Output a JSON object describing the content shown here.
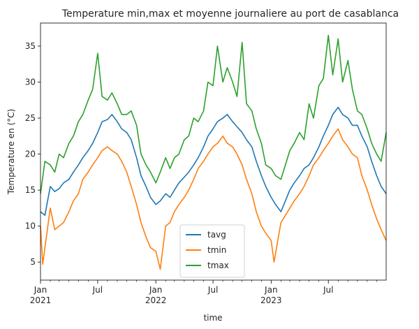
{
  "chart_data": {
    "type": "line",
    "title": "Temperature min,max et moyenne journaliere au port de casablanca",
    "xlabel": "time",
    "ylabel": "Temperature en (°C)",
    "xlim": [
      "2021-01-01",
      "2023-12-31"
    ],
    "ylim": [
      2.5,
      38.2
    ],
    "y_ticks": [
      5,
      10,
      15,
      20,
      25,
      30,
      35
    ],
    "x_ticks": [
      {
        "date": "2021-01-01",
        "label": "Jan",
        "sublabel": "2021"
      },
      {
        "date": "2021-07-01",
        "label": "Jul",
        "sublabel": ""
      },
      {
        "date": "2022-01-01",
        "label": "Jan",
        "sublabel": "2022"
      },
      {
        "date": "2022-07-01",
        "label": "Jul",
        "sublabel": ""
      },
      {
        "date": "2023-01-01",
        "label": "Jan",
        "sublabel": "2023"
      },
      {
        "date": "2023-07-01",
        "label": "Jul",
        "sublabel": ""
      }
    ],
    "grid": false,
    "legend_position": "lower-center",
    "series": [
      {
        "name": "tavg",
        "color": "#1f77b4",
        "x": [
          "2021-01-01",
          "2021-01-15",
          "2021-02-01",
          "2021-02-15",
          "2021-03-01",
          "2021-03-15",
          "2021-04-01",
          "2021-04-15",
          "2021-05-01",
          "2021-05-15",
          "2021-06-01",
          "2021-06-15",
          "2021-07-01",
          "2021-07-15",
          "2021-08-01",
          "2021-08-15",
          "2021-09-01",
          "2021-09-15",
          "2021-10-01",
          "2021-10-15",
          "2021-11-01",
          "2021-11-15",
          "2021-12-01",
          "2021-12-15",
          "2022-01-01",
          "2022-01-15",
          "2022-02-01",
          "2022-02-15",
          "2022-03-01",
          "2022-03-15",
          "2022-04-01",
          "2022-04-15",
          "2022-05-01",
          "2022-05-15",
          "2022-06-01",
          "2022-06-15",
          "2022-07-01",
          "2022-07-15",
          "2022-08-01",
          "2022-08-15",
          "2022-09-01",
          "2022-09-15",
          "2022-10-01",
          "2022-10-15",
          "2022-11-01",
          "2022-11-15",
          "2022-12-01",
          "2022-12-15",
          "2023-01-01",
          "2023-01-15",
          "2023-02-01",
          "2023-02-15",
          "2023-03-01",
          "2023-03-15",
          "2023-04-01",
          "2023-04-15",
          "2023-05-01",
          "2023-05-15",
          "2023-06-01",
          "2023-06-15",
          "2023-07-01",
          "2023-07-15",
          "2023-08-01",
          "2023-08-15",
          "2023-09-01",
          "2023-09-15",
          "2023-10-01",
          "2023-10-15",
          "2023-11-01",
          "2023-11-15",
          "2023-12-01",
          "2023-12-15",
          "2023-12-31"
        ],
        "values": [
          12.0,
          11.5,
          15.5,
          14.8,
          15.2,
          16.0,
          16.5,
          17.5,
          18.5,
          19.5,
          20.5,
          21.5,
          23.0,
          24.5,
          24.8,
          25.5,
          24.5,
          23.5,
          23.0,
          22.0,
          19.5,
          17.0,
          15.5,
          14.0,
          13.0,
          13.5,
          14.5,
          14.0,
          15.0,
          16.0,
          16.8,
          17.5,
          18.5,
          19.5,
          21.0,
          22.5,
          23.5,
          24.5,
          25.0,
          25.5,
          24.5,
          23.8,
          23.0,
          22.0,
          21.0,
          19.0,
          17.0,
          15.5,
          14.0,
          13.0,
          12.0,
          13.5,
          15.0,
          16.0,
          17.0,
          18.0,
          18.5,
          19.5,
          21.0,
          22.5,
          24.0,
          25.5,
          26.5,
          25.5,
          25.0,
          24.0,
          24.0,
          22.5,
          21.0,
          19.0,
          17.0,
          15.5,
          14.5
        ]
      },
      {
        "name": "tmin",
        "color": "#ff7f0e",
        "x": [
          "2021-01-01",
          "2021-01-08",
          "2021-01-15",
          "2021-02-01",
          "2021-02-15",
          "2021-03-01",
          "2021-03-15",
          "2021-04-01",
          "2021-04-15",
          "2021-05-01",
          "2021-05-15",
          "2021-06-01",
          "2021-06-15",
          "2021-07-01",
          "2021-07-15",
          "2021-08-01",
          "2021-08-15",
          "2021-09-01",
          "2021-09-15",
          "2021-10-01",
          "2021-10-15",
          "2021-11-01",
          "2021-11-15",
          "2021-12-01",
          "2021-12-15",
          "2022-01-01",
          "2022-01-15",
          "2022-02-01",
          "2022-02-15",
          "2022-03-01",
          "2022-03-15",
          "2022-04-01",
          "2022-04-15",
          "2022-05-01",
          "2022-05-15",
          "2022-06-01",
          "2022-06-15",
          "2022-07-01",
          "2022-07-15",
          "2022-08-01",
          "2022-08-15",
          "2022-09-01",
          "2022-09-15",
          "2022-10-01",
          "2022-10-15",
          "2022-11-01",
          "2022-11-15",
          "2022-12-01",
          "2022-12-15",
          "2023-01-01",
          "2023-01-10",
          "2023-01-20",
          "2023-02-01",
          "2023-02-15",
          "2023-03-01",
          "2023-03-15",
          "2023-04-01",
          "2023-04-15",
          "2023-05-01",
          "2023-05-15",
          "2023-06-01",
          "2023-06-15",
          "2023-07-01",
          "2023-07-15",
          "2023-08-01",
          "2023-08-15",
          "2023-09-01",
          "2023-09-15",
          "2023-10-01",
          "2023-10-15",
          "2023-11-01",
          "2023-11-15",
          "2023-12-01",
          "2023-12-15",
          "2023-12-31"
        ],
        "values": [
          10.0,
          4.7,
          7.0,
          12.5,
          9.5,
          10.0,
          10.5,
          12.0,
          13.5,
          14.5,
          16.5,
          17.5,
          18.5,
          19.5,
          20.5,
          21.0,
          20.5,
          20.0,
          19.0,
          17.5,
          15.5,
          13.0,
          10.5,
          8.5,
          7.0,
          6.5,
          4.0,
          10.0,
          10.5,
          12.0,
          13.0,
          14.0,
          15.0,
          16.5,
          18.0,
          19.0,
          20.0,
          21.0,
          21.5,
          22.5,
          21.5,
          21.0,
          20.0,
          18.5,
          16.5,
          14.5,
          12.0,
          10.0,
          9.0,
          8.0,
          5.0,
          7.5,
          10.5,
          11.5,
          12.5,
          13.5,
          14.5,
          15.5,
          17.0,
          18.5,
          19.5,
          20.5,
          21.5,
          22.5,
          23.5,
          22.0,
          21.0,
          20.0,
          19.5,
          17.0,
          15.0,
          13.0,
          11.0,
          9.5,
          8.0
        ]
      },
      {
        "name": "tmax",
        "color": "#2ca02c",
        "x": [
          "2021-01-01",
          "2021-01-15",
          "2021-02-01",
          "2021-02-15",
          "2021-03-01",
          "2021-03-15",
          "2021-04-01",
          "2021-04-15",
          "2021-05-01",
          "2021-05-15",
          "2021-06-01",
          "2021-06-15",
          "2021-07-01",
          "2021-07-15",
          "2021-08-01",
          "2021-08-15",
          "2021-09-01",
          "2021-09-15",
          "2021-10-01",
          "2021-10-15",
          "2021-11-01",
          "2021-11-15",
          "2021-12-01",
          "2021-12-15",
          "2022-01-01",
          "2022-01-15",
          "2022-02-01",
          "2022-02-15",
          "2022-03-01",
          "2022-03-15",
          "2022-04-01",
          "2022-04-15",
          "2022-05-01",
          "2022-05-15",
          "2022-06-01",
          "2022-06-15",
          "2022-07-01",
          "2022-07-15",
          "2022-08-01",
          "2022-08-15",
          "2022-09-01",
          "2022-09-15",
          "2022-10-01",
          "2022-10-15",
          "2022-11-01",
          "2022-11-15",
          "2022-12-01",
          "2022-12-15",
          "2023-01-01",
          "2023-01-15",
          "2023-02-01",
          "2023-02-15",
          "2023-03-01",
          "2023-03-15",
          "2023-04-01",
          "2023-04-15",
          "2023-05-01",
          "2023-05-15",
          "2023-06-01",
          "2023-06-15",
          "2023-07-01",
          "2023-07-15",
          "2023-08-01",
          "2023-08-15",
          "2023-09-01",
          "2023-09-15",
          "2023-10-01",
          "2023-10-15",
          "2023-11-01",
          "2023-11-15",
          "2023-12-01",
          "2023-12-15",
          "2023-12-31"
        ],
        "values": [
          14.5,
          19.0,
          18.5,
          17.5,
          20.0,
          19.5,
          21.5,
          22.5,
          24.5,
          25.5,
          27.5,
          29.0,
          34.0,
          28.0,
          27.5,
          28.5,
          27.0,
          25.5,
          25.5,
          26.0,
          24.0,
          20.0,
          18.5,
          17.5,
          16.0,
          17.5,
          19.5,
          18.0,
          19.5,
          20.0,
          22.0,
          22.5,
          25.0,
          24.5,
          26.0,
          30.0,
          29.5,
          35.0,
          30.0,
          32.0,
          30.0,
          28.0,
          35.5,
          27.0,
          26.0,
          23.5,
          21.5,
          18.5,
          18.0,
          17.0,
          16.5,
          18.5,
          20.5,
          21.5,
          23.0,
          22.0,
          27.0,
          25.0,
          29.5,
          30.5,
          36.5,
          31.0,
          36.0,
          30.0,
          33.0,
          29.0,
          26.0,
          25.5,
          23.5,
          21.5,
          20.0,
          19.0,
          23.0
        ]
      }
    ]
  }
}
